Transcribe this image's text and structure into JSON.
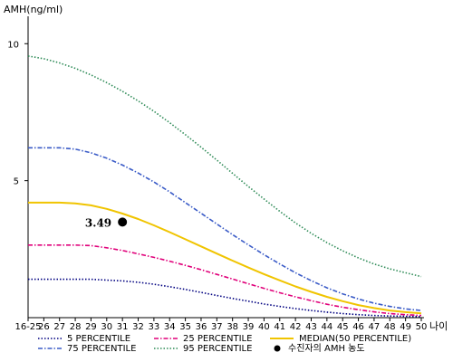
{
  "chart_data": {
    "type": "line",
    "ylabel": "AMH(ng/ml)",
    "xlabel": "나이",
    "categories": [
      "16-25",
      "26",
      "27",
      "28",
      "29",
      "30",
      "31",
      "32",
      "33",
      "34",
      "35",
      "36",
      "37",
      "38",
      "39",
      "40",
      "41",
      "42",
      "43",
      "44",
      "45",
      "46",
      "47",
      "48",
      "49",
      "50"
    ],
    "yticks": [
      5,
      10
    ],
    "ylim": [
      0,
      11
    ],
    "grid": false,
    "legend_position": "bottom",
    "series": [
      {
        "name": "5 PERCENTILE",
        "color": "#000080",
        "style": "dotted",
        "values": [
          1.4,
          1.4,
          1.4,
          1.4,
          1.4,
          1.37,
          1.34,
          1.29,
          1.22,
          1.13,
          1.03,
          0.92,
          0.81,
          0.7,
          0.6,
          0.5,
          0.41,
          0.33,
          0.26,
          0.2,
          0.15,
          0.11,
          0.08,
          0.06,
          0.05,
          0.04
        ]
      },
      {
        "name": "25 PERCENTILE",
        "color": "#e0007a",
        "style": "dashdot",
        "values": [
          2.65,
          2.65,
          2.65,
          2.65,
          2.63,
          2.55,
          2.45,
          2.33,
          2.2,
          2.06,
          1.91,
          1.75,
          1.58,
          1.41,
          1.24,
          1.07,
          0.91,
          0.76,
          0.62,
          0.49,
          0.38,
          0.29,
          0.21,
          0.15,
          0.11,
          0.08
        ]
      },
      {
        "name": "MEDIAN(50 PERCENTILE)",
        "color": "#f0c400",
        "style": "solid",
        "values": [
          4.2,
          4.2,
          4.2,
          4.17,
          4.1,
          3.97,
          3.8,
          3.6,
          3.37,
          3.12,
          2.86,
          2.6,
          2.34,
          2.08,
          1.83,
          1.59,
          1.36,
          1.14,
          0.94,
          0.76,
          0.6,
          0.46,
          0.35,
          0.26,
          0.2,
          0.16
        ]
      },
      {
        "name": "75 PERCENTILE",
        "color": "#3a5bc7",
        "style": "dashdot",
        "values": [
          6.2,
          6.2,
          6.2,
          6.15,
          6.02,
          5.82,
          5.57,
          5.28,
          4.95,
          4.59,
          4.2,
          3.81,
          3.42,
          3.03,
          2.66,
          2.3,
          1.96,
          1.64,
          1.35,
          1.09,
          0.87,
          0.68,
          0.53,
          0.41,
          0.32,
          0.26
        ]
      },
      {
        "name": "95 PERCENTILE",
        "color": "#2e8b57",
        "style": "dotted",
        "values": [
          9.55,
          9.45,
          9.3,
          9.1,
          8.86,
          8.58,
          8.26,
          7.91,
          7.53,
          7.12,
          6.68,
          6.22,
          5.75,
          5.27,
          4.79,
          4.33,
          3.88,
          3.46,
          3.08,
          2.74,
          2.44,
          2.18,
          1.96,
          1.78,
          1.64,
          1.5
        ]
      }
    ],
    "annotation": {
      "category": "31",
      "value": 3.49,
      "label": "3.49",
      "legend_label": "수진자의 AMH 농도",
      "color": "#000000"
    }
  }
}
